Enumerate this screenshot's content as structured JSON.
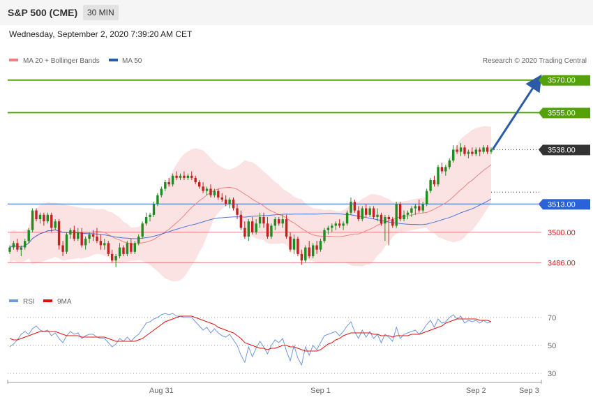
{
  "header": {
    "instrument": "S&P 500 (CME)",
    "timeframe": "30 MIN",
    "datetime": "Wednesday, September 2, 2020 7:39:20 AM CET"
  },
  "price_legend": {
    "ma20": "MA 20 + Bollinger Bands",
    "ma50": "MA 50",
    "credit": "Research © 2020 Trading Central"
  },
  "rsi_legend": {
    "rsi": "RSI",
    "ma9": "9MA"
  },
  "colors": {
    "target": "#55a10a",
    "current": "#333333",
    "ma50": "#2b62d8",
    "support": "#e46666",
    "bollinger": "#fbd9d9",
    "ma20": "#f08080",
    "candle_up": "#1e8c1e",
    "candle_down": "#c42020",
    "arrow": "#2b5aa6",
    "rsi": "#6f98e0",
    "rsi_ma": "#e01010"
  },
  "chart_data": [
    {
      "type": "candlestick",
      "title": "S&P 500 (CME) 30 MIN",
      "x_labels": [
        "Aug 31",
        "Sep 1",
        "Sep 2",
        "Sep 3"
      ],
      "ylim": [
        3472,
        3576
      ],
      "levels": [
        {
          "value": 3570.0,
          "label": "3570.00",
          "kind": "target"
        },
        {
          "value": 3555.0,
          "label": "3555.00",
          "kind": "target"
        },
        {
          "value": 3538.0,
          "label": "3538.00",
          "kind": "current"
        },
        {
          "value": 3513.0,
          "label": "3513.00",
          "kind": "ma50"
        },
        {
          "value": 3500.0,
          "label": "3500.00",
          "kind": "support"
        },
        {
          "value": 3486.0,
          "label": "3486.00",
          "kind": "support"
        }
      ],
      "series": [
        {
          "name": "MA 20 + Bollinger Bands",
          "ma_period": 20,
          "with_bands": true
        },
        {
          "name": "MA 50",
          "ma_period": 50
        }
      ],
      "ohlc": [
        [
          3491,
          3494,
          3490,
          3493
        ],
        [
          3493,
          3496,
          3492,
          3495
        ],
        [
          3495,
          3497,
          3491,
          3492
        ],
        [
          3492,
          3494,
          3489,
          3493
        ],
        [
          3493,
          3497,
          3492,
          3496
        ],
        [
          3496,
          3502,
          3495,
          3501
        ],
        [
          3501,
          3511,
          3500,
          3510
        ],
        [
          3510,
          3511,
          3505,
          3506
        ],
        [
          3506,
          3509,
          3504,
          3508
        ],
        [
          3508,
          3509,
          3503,
          3505
        ],
        [
          3505,
          3509,
          3504,
          3508
        ],
        [
          3508,
          3509,
          3500,
          3502
        ],
        [
          3502,
          3506,
          3501,
          3505
        ],
        [
          3505,
          3506,
          3492,
          3494
        ],
        [
          3494,
          3496,
          3489,
          3491
        ],
        [
          3491,
          3500,
          3490,
          3499
        ],
        [
          3499,
          3502,
          3497,
          3501
        ],
        [
          3501,
          3503,
          3496,
          3497
        ],
        [
          3497,
          3502,
          3496,
          3500
        ],
        [
          3500,
          3502,
          3493,
          3494
        ],
        [
          3494,
          3498,
          3492,
          3497
        ],
        [
          3497,
          3500,
          3495,
          3499
        ],
        [
          3499,
          3501,
          3496,
          3498
        ],
        [
          3498,
          3502,
          3495,
          3496
        ],
        [
          3496,
          3499,
          3492,
          3494
        ],
        [
          3494,
          3497,
          3492,
          3495
        ],
        [
          3495,
          3496,
          3489,
          3490
        ],
        [
          3490,
          3492,
          3486,
          3487
        ],
        [
          3487,
          3490,
          3484,
          3489
        ],
        [
          3489,
          3495,
          3488,
          3493
        ],
        [
          3493,
          3494,
          3489,
          3490
        ],
        [
          3490,
          3496,
          3489,
          3495
        ],
        [
          3495,
          3497,
          3490,
          3491
        ],
        [
          3491,
          3496,
          3490,
          3495
        ],
        [
          3495,
          3499,
          3494,
          3498
        ],
        [
          3498,
          3505,
          3497,
          3504
        ],
        [
          3504,
          3509,
          3503,
          3507
        ],
        [
          3507,
          3509,
          3505,
          3508
        ],
        [
          3508,
          3514,
          3507,
          3513
        ],
        [
          3513,
          3518,
          3512,
          3517
        ],
        [
          3517,
          3521,
          3516,
          3520
        ],
        [
          3520,
          3524,
          3519,
          3523
        ],
        [
          3523,
          3525,
          3521,
          3522
        ],
        [
          3522,
          3527,
          3521,
          3526
        ],
        [
          3526,
          3528,
          3524,
          3525
        ],
        [
          3525,
          3527,
          3524,
          3526
        ],
        [
          3526,
          3528,
          3524,
          3525
        ],
        [
          3525,
          3527,
          3524,
          3526
        ],
        [
          3526,
          3528,
          3524,
          3525
        ],
        [
          3525,
          3526,
          3522,
          3523
        ],
        [
          3523,
          3524,
          3520,
          3521
        ],
        [
          3521,
          3523,
          3518,
          3519
        ],
        [
          3519,
          3521,
          3517,
          3520
        ],
        [
          3520,
          3522,
          3516,
          3517
        ],
        [
          3517,
          3520,
          3516,
          3519
        ],
        [
          3519,
          3520,
          3515,
          3516
        ],
        [
          3516,
          3518,
          3514,
          3515
        ],
        [
          3515,
          3517,
          3512,
          3513
        ],
        [
          3513,
          3516,
          3511,
          3515
        ],
        [
          3515,
          3516,
          3510,
          3511
        ],
        [
          3511,
          3513,
          3506,
          3508
        ],
        [
          3508,
          3510,
          3501,
          3502
        ],
        [
          3502,
          3505,
          3497,
          3498
        ],
        [
          3498,
          3506,
          3496,
          3505
        ],
        [
          3505,
          3507,
          3499,
          3500
        ],
        [
          3500,
          3506,
          3499,
          3504
        ],
        [
          3504,
          3509,
          3502,
          3507
        ],
        [
          3507,
          3509,
          3502,
          3504
        ],
        [
          3504,
          3507,
          3497,
          3498
        ],
        [
          3498,
          3504,
          3497,
          3503
        ],
        [
          3503,
          3507,
          3501,
          3506
        ],
        [
          3506,
          3507,
          3503,
          3504
        ],
        [
          3504,
          3508,
          3502,
          3506
        ],
        [
          3506,
          3508,
          3497,
          3498
        ],
        [
          3498,
          3500,
          3491,
          3492
        ],
        [
          3492,
          3499,
          3490,
          3497
        ],
        [
          3497,
          3498,
          3489,
          3490
        ],
        [
          3490,
          3492,
          3485,
          3487
        ],
        [
          3487,
          3494,
          3486,
          3493
        ],
        [
          3493,
          3496,
          3488,
          3489
        ],
        [
          3489,
          3495,
          3488,
          3494
        ],
        [
          3494,
          3496,
          3490,
          3492
        ],
        [
          3492,
          3497,
          3491,
          3496
        ],
        [
          3496,
          3502,
          3495,
          3501
        ],
        [
          3501,
          3503,
          3499,
          3502
        ],
        [
          3502,
          3504,
          3500,
          3503
        ],
        [
          3503,
          3505,
          3501,
          3504
        ],
        [
          3504,
          3506,
          3502,
          3503
        ],
        [
          3503,
          3505,
          3501,
          3504
        ],
        [
          3504,
          3510,
          3503,
          3509
        ],
        [
          3509,
          3516,
          3508,
          3514
        ],
        [
          3514,
          3515,
          3509,
          3510
        ],
        [
          3510,
          3512,
          3505,
          3506
        ],
        [
          3506,
          3512,
          3505,
          3511
        ],
        [
          3511,
          3513,
          3507,
          3508
        ],
        [
          3508,
          3512,
          3507,
          3511
        ],
        [
          3511,
          3512,
          3506,
          3507
        ],
        [
          3507,
          3511,
          3505,
          3508
        ],
        [
          3508,
          3509,
          3503,
          3504
        ],
        [
          3504,
          3508,
          3496,
          3507
        ],
        [
          3507,
          3508,
          3494,
          3506
        ],
        [
          3506,
          3507,
          3502,
          3503
        ],
        [
          3503,
          3514,
          3502,
          3513
        ],
        [
          3513,
          3514,
          3505,
          3506
        ],
        [
          3506,
          3510,
          3505,
          3508
        ],
        [
          3508,
          3510,
          3506,
          3509
        ],
        [
          3509,
          3512,
          3507,
          3511
        ],
        [
          3511,
          3513,
          3508,
          3512
        ],
        [
          3512,
          3515,
          3509,
          3510
        ],
        [
          3510,
          3514,
          3509,
          3513
        ],
        [
          3513,
          3520,
          3512,
          3519
        ],
        [
          3519,
          3525,
          3518,
          3524
        ],
        [
          3524,
          3526,
          3521,
          3522
        ],
        [
          3522,
          3531,
          3521,
          3530
        ],
        [
          3530,
          3532,
          3527,
          3528
        ],
        [
          3528,
          3531,
          3526,
          3530
        ],
        [
          3530,
          3534,
          3529,
          3533
        ],
        [
          3533,
          3540,
          3532,
          3538
        ],
        [
          3538,
          3540,
          3536,
          3537
        ],
        [
          3537,
          3541,
          3535,
          3539
        ],
        [
          3539,
          3540,
          3535,
          3536
        ],
        [
          3536,
          3538,
          3534,
          3537
        ],
        [
          3537,
          3539,
          3535,
          3536
        ],
        [
          3536,
          3539,
          3535,
          3538
        ],
        [
          3538,
          3539,
          3535,
          3537
        ],
        [
          3537,
          3540,
          3536,
          3539
        ],
        [
          3539,
          3540,
          3536,
          3537
        ],
        [
          3537,
          3539,
          3536,
          3538
        ]
      ]
    },
    {
      "type": "line",
      "title": "RSI",
      "y_ticks": [
        30,
        50,
        70
      ],
      "ylim": [
        25,
        75
      ],
      "series": [
        {
          "name": "RSI",
          "values": [
            49,
            51,
            54,
            58,
            60,
            58,
            62,
            64,
            61,
            60,
            61,
            57,
            59,
            55,
            52,
            57,
            60,
            58,
            59,
            55,
            57,
            58,
            58,
            56,
            55,
            55,
            52,
            49,
            51,
            55,
            53,
            56,
            53,
            56,
            58,
            62,
            66,
            67,
            69,
            70,
            72,
            73,
            72,
            73,
            71,
            71,
            70,
            70,
            70,
            67,
            64,
            61,
            63,
            59,
            62,
            59,
            57,
            56,
            58,
            54,
            50,
            43,
            38,
            49,
            42,
            48,
            53,
            49,
            44,
            50,
            54,
            52,
            55,
            46,
            39,
            50,
            41,
            36,
            49,
            43,
            50,
            47,
            52,
            57,
            58,
            59,
            60,
            57,
            60,
            64,
            67,
            60,
            55,
            61,
            56,
            60,
            55,
            58,
            52,
            58,
            56,
            53,
            63,
            55,
            58,
            59,
            60,
            61,
            58,
            61,
            65,
            68,
            63,
            69,
            66,
            67,
            70,
            72,
            69,
            71,
            66,
            68,
            67,
            68,
            66,
            68,
            66,
            67
          ]
        },
        {
          "name": "9MA",
          "values": [
            55,
            54,
            54,
            55,
            56,
            57,
            58,
            59,
            60,
            60,
            60,
            60,
            60,
            59,
            58,
            57,
            57,
            57,
            57,
            56,
            56,
            56,
            56,
            56,
            56,
            56,
            55,
            54,
            53,
            53,
            53,
            53,
            53,
            53,
            54,
            55,
            57,
            59,
            61,
            63,
            65,
            67,
            68,
            69,
            70,
            71,
            71,
            71,
            71,
            70,
            69,
            68,
            67,
            66,
            65,
            63,
            62,
            61,
            60,
            59,
            57,
            55,
            52,
            51,
            50,
            49,
            48,
            48,
            47,
            48,
            48,
            49,
            50,
            50,
            49,
            49,
            48,
            47,
            46,
            46,
            46,
            46,
            47,
            49,
            51,
            52,
            54,
            55,
            57,
            58,
            59,
            59,
            59,
            59,
            59,
            59,
            58,
            58,
            57,
            57,
            57,
            56,
            57,
            57,
            57,
            57,
            58,
            58,
            58,
            59,
            60,
            61,
            62,
            63,
            64,
            66,
            67,
            68,
            69,
            69,
            69,
            69,
            69,
            69,
            68,
            68,
            68,
            67
          ]
        }
      ]
    }
  ]
}
